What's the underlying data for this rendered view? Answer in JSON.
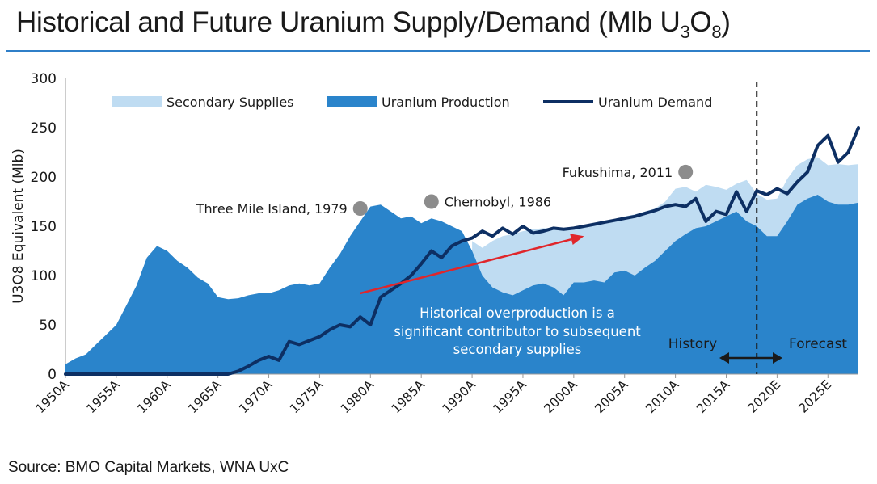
{
  "title": {
    "main": "Historical and Future Uranium Supply/Demand (Mlb U",
    "sub3": "3",
    "o": "O",
    "sub8": "8",
    "close": ")"
  },
  "source": "Source: BMO Capital Markets, WNA UxC",
  "colors": {
    "secondary": "#bfdcf2",
    "production": "#2a84cb",
    "demand": "#0d2f63",
    "arrow": "#e0262b",
    "marker": "#8c8c8c",
    "rule": "#2f7fc8"
  },
  "chart_data": {
    "type": "area",
    "ylabel": "U3O8 Equivalent (Mlb)",
    "ylim": [
      0,
      300
    ],
    "yticks": [
      0,
      50,
      100,
      150,
      200,
      250,
      300
    ],
    "xlim": [
      1950,
      2028
    ],
    "xticks": [
      {
        "x": 1950,
        "label": "1950A"
      },
      {
        "x": 1955,
        "label": "1955A"
      },
      {
        "x": 1960,
        "label": "1960A"
      },
      {
        "x": 1965,
        "label": "1965A"
      },
      {
        "x": 1970,
        "label": "1970A"
      },
      {
        "x": 1975,
        "label": "1975A"
      },
      {
        "x": 1980,
        "label": "1980A"
      },
      {
        "x": 1985,
        "label": "1985A"
      },
      {
        "x": 1990,
        "label": "1990A"
      },
      {
        "x": 1995,
        "label": "1995A"
      },
      {
        "x": 2000,
        "label": "2000A"
      },
      {
        "x": 2005,
        "label": "2005A"
      },
      {
        "x": 2010,
        "label": "2010A"
      },
      {
        "x": 2015,
        "label": "2015A"
      },
      {
        "x": 2020,
        "label": "2020E"
      },
      {
        "x": 2025,
        "label": "2025E"
      }
    ],
    "legend": [
      {
        "name": "Secondary Supplies",
        "kind": "area"
      },
      {
        "name": "Uranium Production",
        "kind": "area"
      },
      {
        "name": "Uranium Demand",
        "kind": "line"
      }
    ],
    "total_supply": [
      [
        1990,
        135
      ],
      [
        1991,
        128
      ],
      [
        1992,
        135
      ],
      [
        1993,
        140
      ],
      [
        1994,
        142
      ],
      [
        1995,
        145
      ],
      [
        1996,
        147
      ],
      [
        1997,
        148
      ],
      [
        1998,
        148
      ],
      [
        1999,
        147
      ],
      [
        2000,
        148
      ],
      [
        2001,
        150
      ],
      [
        2002,
        152
      ],
      [
        2003,
        155
      ],
      [
        2004,
        157
      ],
      [
        2005,
        160
      ],
      [
        2006,
        162
      ],
      [
        2007,
        165
      ],
      [
        2008,
        168
      ],
      [
        2009,
        175
      ],
      [
        2010,
        188
      ],
      [
        2011,
        190
      ],
      [
        2012,
        185
      ],
      [
        2013,
        192
      ],
      [
        2014,
        190
      ],
      [
        2015,
        187
      ],
      [
        2016,
        193
      ],
      [
        2017,
        197
      ],
      [
        2018,
        183
      ],
      [
        2019,
        177
      ],
      [
        2020,
        178
      ],
      [
        2021,
        198
      ],
      [
        2022,
        212
      ],
      [
        2023,
        218
      ],
      [
        2024,
        220
      ],
      [
        2025,
        212
      ],
      [
        2026,
        213
      ],
      [
        2027,
        212
      ],
      [
        2028,
        213
      ]
    ],
    "production": [
      [
        1950,
        10
      ],
      [
        1951,
        16
      ],
      [
        1952,
        20
      ],
      [
        1953,
        30
      ],
      [
        1954,
        40
      ],
      [
        1955,
        50
      ],
      [
        1956,
        70
      ],
      [
        1957,
        90
      ],
      [
        1958,
        118
      ],
      [
        1959,
        130
      ],
      [
        1960,
        125
      ],
      [
        1961,
        115
      ],
      [
        1962,
        108
      ],
      [
        1963,
        98
      ],
      [
        1964,
        92
      ],
      [
        1965,
        78
      ],
      [
        1966,
        76
      ],
      [
        1967,
        77
      ],
      [
        1968,
        80
      ],
      [
        1969,
        82
      ],
      [
        1970,
        82
      ],
      [
        1971,
        85
      ],
      [
        1972,
        90
      ],
      [
        1973,
        92
      ],
      [
        1974,
        90
      ],
      [
        1975,
        92
      ],
      [
        1976,
        108
      ],
      [
        1977,
        122
      ],
      [
        1978,
        140
      ],
      [
        1979,
        155
      ],
      [
        1980,
        170
      ],
      [
        1981,
        172
      ],
      [
        1982,
        165
      ],
      [
        1983,
        158
      ],
      [
        1984,
        160
      ],
      [
        1985,
        153
      ],
      [
        1986,
        158
      ],
      [
        1987,
        155
      ],
      [
        1988,
        150
      ],
      [
        1989,
        145
      ],
      [
        1990,
        125
      ],
      [
        1991,
        100
      ],
      [
        1992,
        88
      ],
      [
        1993,
        83
      ],
      [
        1994,
        80
      ],
      [
        1995,
        85
      ],
      [
        1996,
        90
      ],
      [
        1997,
        92
      ],
      [
        1998,
        88
      ],
      [
        1999,
        80
      ],
      [
        2000,
        93
      ],
      [
        2001,
        93
      ],
      [
        2002,
        95
      ],
      [
        2003,
        93
      ],
      [
        2004,
        103
      ],
      [
        2005,
        105
      ],
      [
        2006,
        100
      ],
      [
        2007,
        108
      ],
      [
        2008,
        115
      ],
      [
        2009,
        125
      ],
      [
        2010,
        135
      ],
      [
        2011,
        142
      ],
      [
        2012,
        148
      ],
      [
        2013,
        150
      ],
      [
        2014,
        155
      ],
      [
        2015,
        160
      ],
      [
        2016,
        165
      ],
      [
        2017,
        155
      ],
      [
        2018,
        150
      ],
      [
        2019,
        140
      ],
      [
        2020,
        140
      ],
      [
        2021,
        155
      ],
      [
        2022,
        172
      ],
      [
        2023,
        178
      ],
      [
        2024,
        182
      ],
      [
        2025,
        175
      ],
      [
        2026,
        172
      ],
      [
        2027,
        172
      ],
      [
        2028,
        174
      ]
    ],
    "demand": [
      [
        1950,
        0
      ],
      [
        1960,
        0
      ],
      [
        1966,
        0
      ],
      [
        1967,
        3
      ],
      [
        1968,
        8
      ],
      [
        1969,
        14
      ],
      [
        1970,
        18
      ],
      [
        1971,
        14
      ],
      [
        1972,
        33
      ],
      [
        1973,
        30
      ],
      [
        1974,
        34
      ],
      [
        1975,
        38
      ],
      [
        1976,
        45
      ],
      [
        1977,
        50
      ],
      [
        1978,
        48
      ],
      [
        1979,
        58
      ],
      [
        1980,
        50
      ],
      [
        1981,
        78
      ],
      [
        1982,
        85
      ],
      [
        1983,
        92
      ],
      [
        1984,
        100
      ],
      [
        1985,
        112
      ],
      [
        1986,
        125
      ],
      [
        1987,
        118
      ],
      [
        1988,
        130
      ],
      [
        1989,
        135
      ],
      [
        1990,
        138
      ],
      [
        1991,
        145
      ],
      [
        1992,
        140
      ],
      [
        1993,
        148
      ],
      [
        1994,
        142
      ],
      [
        1995,
        150
      ],
      [
        1996,
        143
      ],
      [
        1997,
        145
      ],
      [
        1998,
        148
      ],
      [
        1999,
        147
      ],
      [
        2000,
        148
      ],
      [
        2001,
        150
      ],
      [
        2002,
        152
      ],
      [
        2003,
        154
      ],
      [
        2004,
        156
      ],
      [
        2005,
        158
      ],
      [
        2006,
        160
      ],
      [
        2007,
        163
      ],
      [
        2008,
        166
      ],
      [
        2009,
        170
      ],
      [
        2010,
        172
      ],
      [
        2011,
        170
      ],
      [
        2012,
        178
      ],
      [
        2013,
        155
      ],
      [
        2014,
        165
      ],
      [
        2015,
        162
      ],
      [
        2016,
        185
      ],
      [
        2017,
        165
      ],
      [
        2018,
        186
      ],
      [
        2019,
        182
      ],
      [
        2020,
        188
      ],
      [
        2021,
        183
      ],
      [
        2022,
        195
      ],
      [
        2023,
        205
      ],
      [
        2024,
        232
      ],
      [
        2025,
        242
      ],
      [
        2026,
        215
      ],
      [
        2027,
        225
      ],
      [
        2028,
        250
      ],
      [
        2029,
        249
      ]
    ],
    "events": [
      {
        "label": "Three Mile Island, 1979",
        "x": 1979,
        "y": 168
      },
      {
        "label": "Chernobyl, 1986",
        "x": 1986,
        "y": 175
      },
      {
        "label": "Fukushima, 2011",
        "x": 2011,
        "y": 205
      }
    ],
    "annotations": {
      "overproduction": [
        "Historical overproduction is a",
        "significant contributor to subsequent",
        "secondary supplies"
      ],
      "history": "History",
      "forecast": "Forecast",
      "divider_x": 2018
    },
    "trend_arrow": {
      "from": [
        1979,
        82
      ],
      "to": [
        2001,
        140
      ]
    }
  }
}
